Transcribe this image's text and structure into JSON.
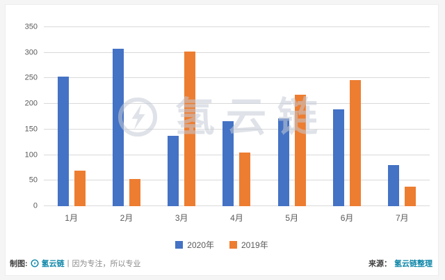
{
  "chart_data": {
    "type": "bar",
    "title": "",
    "xlabel": "",
    "ylabel": "",
    "categories": [
      "1月",
      "2月",
      "3月",
      "4月",
      "5月",
      "6月",
      "7月"
    ],
    "series": [
      {
        "name": "2020年",
        "color": "#4472C4",
        "values": [
          253,
          308,
          137,
          166,
          172,
          189,
          80
        ]
      },
      {
        "name": "2019年",
        "color": "#ED7D31",
        "values": [
          69,
          53,
          303,
          105,
          218,
          246,
          38
        ]
      }
    ],
    "ylim": [
      0,
      350
    ],
    "ytick_step": 50,
    "yticks": [
      0,
      50,
      100,
      150,
      200,
      250,
      300,
      350
    ],
    "grid": true,
    "legend_position": "bottom"
  },
  "watermark": {
    "text": "氢云链",
    "logo": "hydrogen-cloud-chain-logo"
  },
  "footer": {
    "made_by_label": "制图:",
    "brand": "氢云链",
    "separator": "|",
    "slogan": "因为专注，所以专业",
    "source_label": "来源：",
    "source_text": "氢云链整理"
  },
  "colors": {
    "series_2020": "#4472C4",
    "series_2019": "#ED7D31",
    "gridline": "#d9d9d9",
    "axis_text": "#595959",
    "watermark": "#c5cbd6",
    "brand_text": "#0d86a8",
    "footer_text": "#404040"
  }
}
